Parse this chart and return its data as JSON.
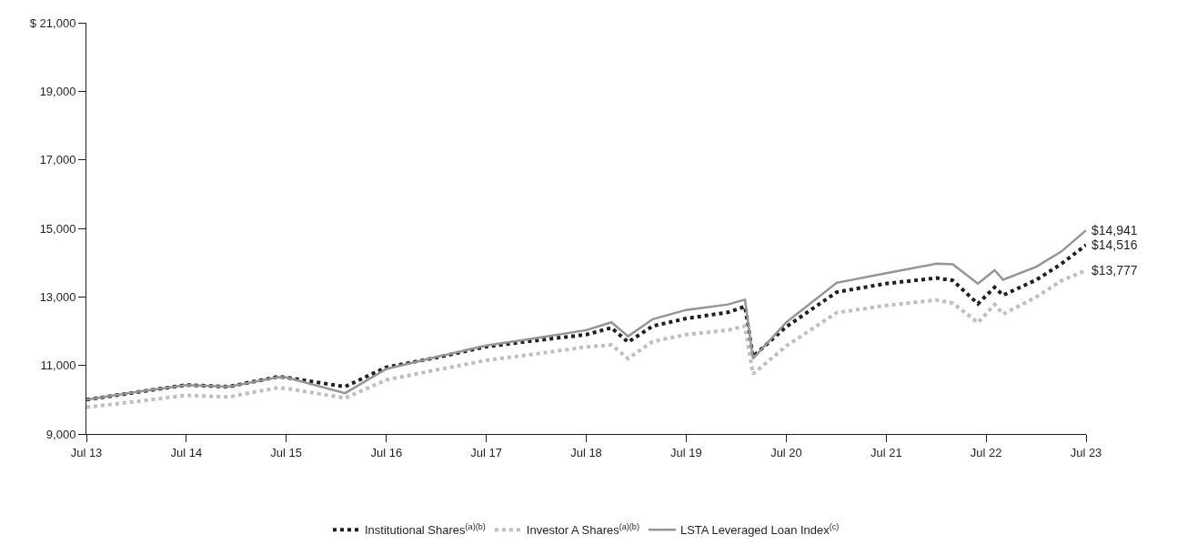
{
  "chart_data": {
    "type": "line",
    "x": [
      "2013-07",
      "2014-01",
      "2014-07",
      "2014-12",
      "2015-06",
      "2015-07",
      "2016-02",
      "2016-07",
      "2017-01",
      "2017-07",
      "2018-01",
      "2018-07",
      "2018-10",
      "2018-12",
      "2019-03",
      "2019-07",
      "2019-12",
      "2020-02",
      "2020-03",
      "2020-07",
      "2021-01",
      "2021-07",
      "2022-01",
      "2022-03",
      "2022-06",
      "2022-08",
      "2022-09",
      "2023-01",
      "2023-04",
      "2023-07"
    ],
    "series": [
      {
        "name": "Institutional Shares$^{(a)(b)}$",
        "color": "#231f20",
        "line_style": "dotted",
        "values": [
          10000,
          10220,
          10430,
          10380,
          10670,
          10650,
          10380,
          10950,
          11230,
          11550,
          11730,
          11900,
          12100,
          11680,
          12150,
          12370,
          12550,
          12720,
          11260,
          12130,
          13140,
          13390,
          13550,
          13480,
          12800,
          13280,
          13050,
          13500,
          13960,
          14516
        ]
      },
      {
        "name": "Investor A Shares$^{(a)(b)}$",
        "color": "#bcbec0",
        "line_style": "dotted",
        "values": [
          9780,
          9950,
          10130,
          10080,
          10350,
          10330,
          10050,
          10580,
          10870,
          11150,
          11340,
          11540,
          11600,
          11200,
          11700,
          11900,
          12030,
          12150,
          10750,
          11570,
          12540,
          12750,
          12910,
          12820,
          12250,
          12780,
          12500,
          13000,
          13470,
          13777
        ]
      },
      {
        "name": "LSTA Leveraged Loan Index$^{(c)}$",
        "color": "#939598",
        "line_style": "solid",
        "values": [
          10000,
          10230,
          10430,
          10380,
          10660,
          10650,
          10190,
          10900,
          11250,
          11580,
          11800,
          12030,
          12260,
          11850,
          12350,
          12620,
          12780,
          12920,
          11200,
          12260,
          13410,
          13690,
          13970,
          13950,
          13390,
          13780,
          13500,
          13880,
          14320,
          14941
        ]
      }
    ],
    "xlim": [
      "2013-07",
      "2023-07"
    ],
    "xticks": [
      {
        "value": "2013-07",
        "label": "Jul 13"
      },
      {
        "value": "2014-07",
        "label": "Jul 14"
      },
      {
        "value": "2015-07",
        "label": "Jul 15"
      },
      {
        "value": "2016-07",
        "label": "Jul 16"
      },
      {
        "value": "2017-07",
        "label": "Jul 17"
      },
      {
        "value": "2018-07",
        "label": "Jul 18"
      },
      {
        "value": "2019-07",
        "label": "Jul 19"
      },
      {
        "value": "2020-07",
        "label": "Jul 20"
      },
      {
        "value": "2021-07",
        "label": "Jul 21"
      },
      {
        "value": "2022-07",
        "label": "Jul 22"
      },
      {
        "value": "2023-07",
        "label": "Jul 23"
      }
    ],
    "ylim": [
      9000,
      21000
    ],
    "yticks": [
      {
        "value": 9000,
        "label": "9,000"
      },
      {
        "value": 11000,
        "label": "11,000"
      },
      {
        "value": 13000,
        "label": "13,000"
      },
      {
        "value": 15000,
        "label": "15,000"
      },
      {
        "value": 17000,
        "label": "17,000"
      },
      {
        "value": 19000,
        "label": "19,000"
      },
      {
        "value": 21000,
        "label": "$ 21,000"
      }
    ],
    "annotations": [
      {
        "text": "$14,941",
        "x": "2023-07",
        "y": 14941
      },
      {
        "text": "$14,516",
        "x": "2023-07",
        "y": 14516
      },
      {
        "text": "$13,777",
        "x": "2023-07",
        "y": 13777
      }
    ],
    "legend": "bottom",
    "marker": "none"
  }
}
